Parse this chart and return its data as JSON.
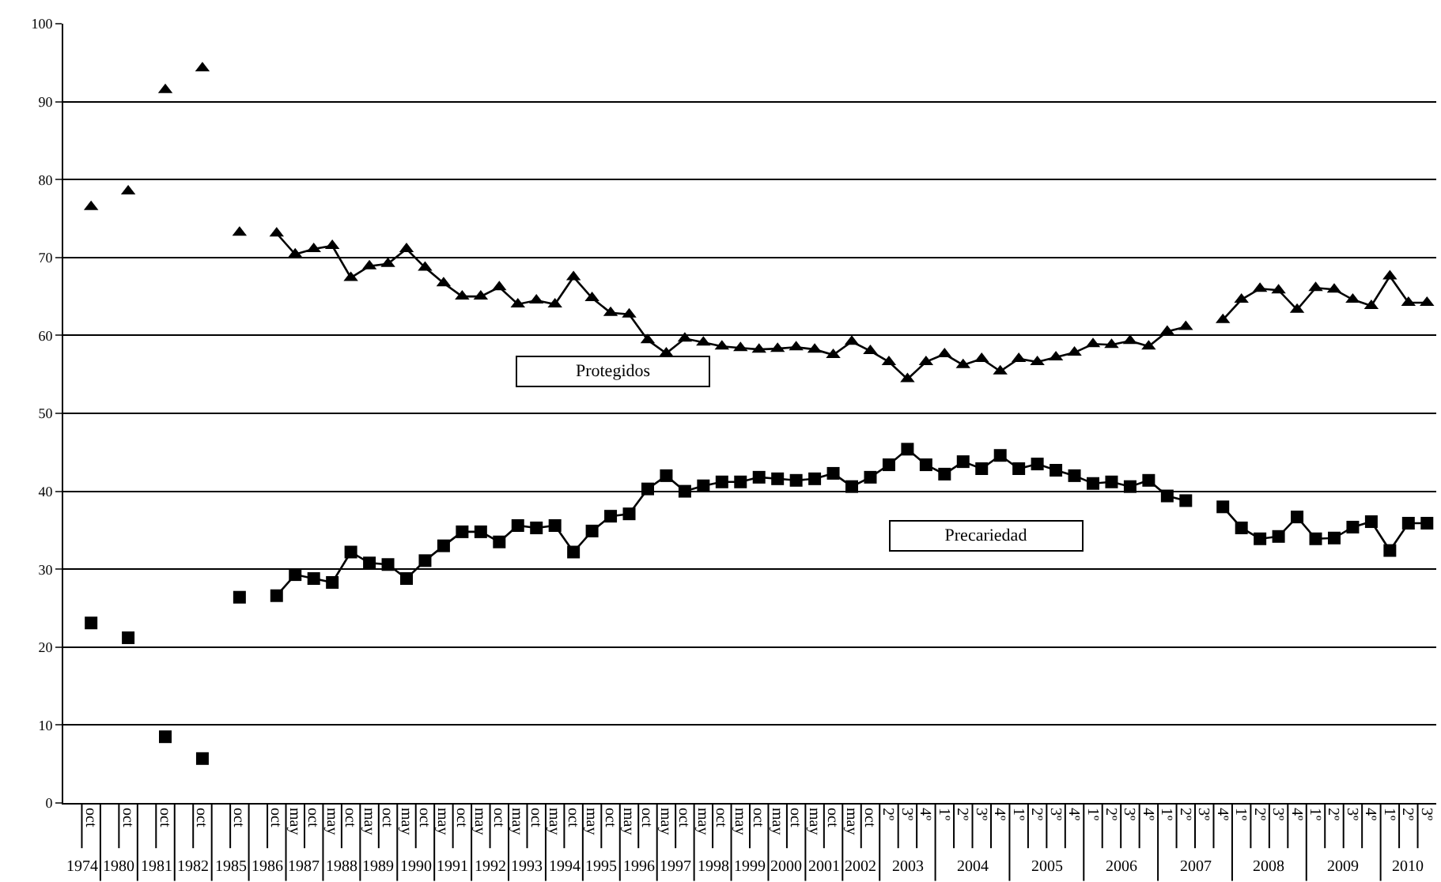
{
  "chart_data": {
    "type": "line",
    "categories": [
      null,
      "oct",
      null,
      "oct",
      null,
      "oct",
      null,
      "oct",
      null,
      "oct",
      null,
      "oct",
      "may",
      "oct",
      "may",
      "oct",
      "may",
      "oct",
      "may",
      "oct",
      "may",
      "oct",
      "may",
      "oct",
      "may",
      "oct",
      "may",
      "oct",
      "may",
      "oct",
      "may",
      "oct",
      "may",
      "oct",
      "may",
      "oct",
      "may",
      "oct",
      "may",
      "oct",
      "may",
      "oct",
      "may",
      "oct",
      "2º",
      "3º",
      "4º",
      "1º",
      "2º",
      "3º",
      "4º",
      "1º",
      "2º",
      "3º",
      "4º",
      "1º",
      "2º",
      "3º",
      "4º",
      "1º",
      "2º",
      "3º",
      "4º",
      "1º",
      "2º",
      "3º",
      "4º",
      "1º",
      "2º",
      "3º",
      "4º",
      "1º",
      "2º",
      "3º"
    ],
    "annotations": [
      "1974",
      "1980",
      "1981",
      "1982",
      "1985",
      "1986",
      "1987",
      "1988",
      "1989",
      "1990",
      "1991",
      "1992",
      "1993",
      "1994",
      "1995",
      "1996",
      "1997",
      "1998",
      "1999",
      "2000",
      "2001",
      "2002",
      "2003",
      "2004",
      "2005",
      "2006",
      "2007",
      "2008",
      "2009",
      "2010"
    ],
    "series": [
      {
        "name": "Protegidos",
        "color": "#000000",
        "marker": "triangle",
        "values": [
          null,
          76.5,
          null,
          78.5,
          null,
          91.5,
          null,
          94.3,
          null,
          73.2,
          null,
          73.1,
          70.4,
          71.1,
          71.5,
          67.4,
          68.9,
          69.2,
          71.1,
          68.7,
          66.7,
          65.0,
          65.0,
          66.2,
          64.0,
          64.5,
          64.0,
          67.5,
          64.8,
          62.9,
          62.7,
          59.4,
          57.7,
          59.6,
          59.1,
          58.6,
          58.4,
          58.2,
          58.3,
          58.5,
          58.2,
          57.5,
          59.2,
          58.0,
          56.6,
          54.4,
          56.6,
          57.6,
          56.2,
          57.0,
          55.4,
          57.0,
          56.6,
          57.2,
          57.8,
          58.9,
          58.8,
          59.3,
          58.6,
          60.5,
          61.1,
          null,
          62.0,
          64.6,
          66.0,
          65.8,
          63.3,
          66.1,
          65.9,
          64.6,
          63.8,
          67.6,
          64.2,
          64.2
        ]
      },
      {
        "name": "Precariedad",
        "color": "#000000",
        "marker": "square",
        "values": [
          null,
          23.1,
          null,
          21.2,
          null,
          8.5,
          null,
          5.7,
          null,
          26.4,
          null,
          26.6,
          29.3,
          28.8,
          28.3,
          32.2,
          30.8,
          30.6,
          28.8,
          31.1,
          33.0,
          34.8,
          34.8,
          33.5,
          35.6,
          35.3,
          35.6,
          32.2,
          34.9,
          36.8,
          37.1,
          40.3,
          42.0,
          40.0,
          40.7,
          41.2,
          41.2,
          41.8,
          41.6,
          41.4,
          41.6,
          42.3,
          40.6,
          41.8,
          43.4,
          45.4,
          43.4,
          42.2,
          43.8,
          42.9,
          44.6,
          42.9,
          43.5,
          42.7,
          42.0,
          41.0,
          41.2,
          40.6,
          41.4,
          39.4,
          38.8,
          null,
          38.0,
          35.3,
          33.9,
          34.2,
          36.7,
          33.9,
          34.0,
          35.4,
          36.1,
          32.4,
          35.9,
          35.9
        ]
      }
    ],
    "ylim": [
      0,
      100
    ],
    "yticks": [
      0,
      10,
      20,
      30,
      40,
      50,
      60,
      70,
      80,
      90,
      100
    ],
    "grid": "y",
    "legend": false,
    "line_style": "solid"
  }
}
